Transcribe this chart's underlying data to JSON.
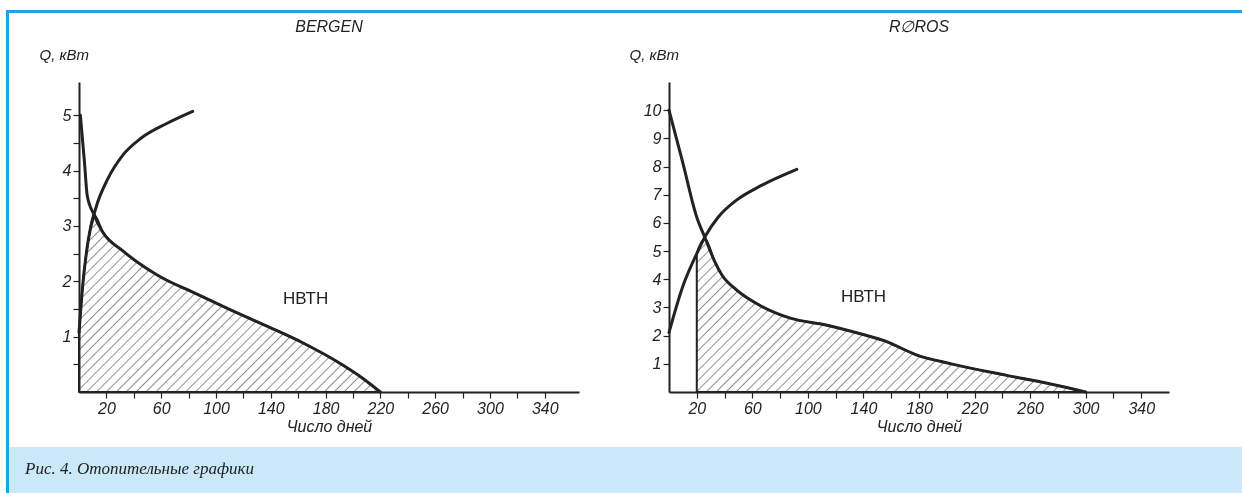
{
  "chart_data": [
    {
      "type": "line",
      "title": "BERGEN",
      "xlabel": "Число дней",
      "ylabel": "Q, кВт",
      "xlim": [
        0,
        365
      ],
      "ylim": [
        0,
        5.6
      ],
      "xticks": [
        20,
        {
          "value": 40,
          "label": null
        },
        60,
        {
          "value": 80,
          "label": null
        },
        100,
        {
          "value": 120,
          "label": null
        },
        140,
        {
          "value": 160,
          "label": null
        },
        180,
        {
          "value": 200,
          "label": null
        },
        220,
        {
          "value": 240,
          "label": null
        },
        260,
        {
          "value": 280,
          "label": null
        },
        300,
        {
          "value": 320,
          "label": null
        },
        340
      ],
      "yticks": [
        {
          "value": 0.5,
          "label": null
        },
        1,
        {
          "value": 1.5,
          "label": null
        },
        2,
        {
          "value": 2.5,
          "label": null
        },
        3,
        {
          "value": 3.5,
          "label": null
        },
        4,
        {
          "value": 4.5,
          "label": null
        },
        5
      ],
      "grid": false,
      "legend": false,
      "series": [
        {
          "type": "area",
          "color": "#222222",
          "x": [
            0,
            2.8,
            6.8,
            11,
            17.3,
            31.9,
            58,
            85,
            111,
            138,
            164,
            191,
            207,
            220
          ],
          "values": [
            1.07,
            1.95,
            2.75,
            3.2,
            2.9,
            2.55,
            2.1,
            1.78,
            1.48,
            1.18,
            0.88,
            0.51,
            0.25,
            0
          ]
        },
        {
          "type": "line",
          "color": "#222222",
          "x": [
            1,
            4,
            6,
            11,
            17,
            32,
            58,
            85,
            111,
            138,
            164,
            191,
            207,
            220
          ],
          "values": [
            5,
            4.15,
            3.55,
            3.2,
            2.9,
            2.55,
            2.1,
            1.78,
            1.48,
            1.18,
            0.88,
            0.51,
            0.25,
            0
          ]
        },
        {
          "type": "line",
          "color": "#222222",
          "x": [
            0,
            2.8,
            6.8,
            12,
            21,
            32,
            45,
            64,
            83
          ],
          "values": [
            1.07,
            1.95,
            2.75,
            3.3,
            3.85,
            4.28,
            4.58,
            4.85,
            5.07
          ]
        }
      ],
      "annotations": [
        {
          "text": "НВТН",
          "x": 138,
          "y": 1.18
        },
        "Рис. 4. Отопительные графики"
      ]
    },
    {
      "type": "line",
      "title": "R∅ROS",
      "xlabel": "Число дней",
      "ylabel": "Q, кВт",
      "xlim": [
        0,
        360
      ],
      "ylim": [
        0,
        11
      ],
      "xticks": [
        20,
        {
          "value": 40,
          "label": null
        },
        60,
        {
          "value": 80,
          "label": null
        },
        100,
        {
          "value": 120,
          "label": null
        },
        140,
        {
          "value": 160,
          "label": null
        },
        180,
        {
          "value": 200,
          "label": null
        },
        220,
        {
          "value": 240,
          "label": null
        },
        260,
        {
          "value": 280,
          "label": null
        },
        300,
        {
          "value": 320,
          "label": null
        },
        340
      ],
      "yticks": [
        1,
        2,
        3,
        4,
        5,
        6,
        7,
        8,
        9,
        10
      ],
      "grid": false,
      "legend": false,
      "series": [
        {
          "type": "area",
          "color": "#222222",
          "x": [
            20,
            20,
            26,
            33,
            38,
            48.4,
            66.6,
            87.3,
            113,
            139,
            155,
            178,
            204,
            243,
            274,
            300
          ],
          "values": [
            0,
            4.91,
            5.42,
            4.62,
            4.16,
            3.63,
            3.04,
            2.62,
            2.38,
            2.05,
            1.82,
            1.32,
            0.99,
            0.59,
            0.29,
            0
          ]
        },
        {
          "type": "line",
          "color": "#222222",
          "x": [
            0,
            9.6,
            20,
            26.4,
            33,
            38,
            48.4,
            66.6,
            87.3,
            113,
            139,
            155,
            178,
            204,
            243,
            274,
            300
          ],
          "values": [
            10,
            8.2,
            6.2,
            5.42,
            4.62,
            4.16,
            3.63,
            3.04,
            2.62,
            2.38,
            2.05,
            1.82,
            1.32,
            0.99,
            0.59,
            0.29,
            0
          ]
        },
        {
          "type": "line",
          "color": "#222222",
          "x": [
            0,
            9.6,
            20,
            26.4,
            35.5,
            48.4,
            66.6,
            92
          ],
          "values": [
            2.11,
            3.7,
            4.91,
            5.55,
            6.21,
            6.8,
            7.33,
            7.9
          ]
        }
      ],
      "annotations": [
        {
          "text": "НВТН",
          "x": 113,
          "y": 2.38
        }
      ]
    }
  ]
}
